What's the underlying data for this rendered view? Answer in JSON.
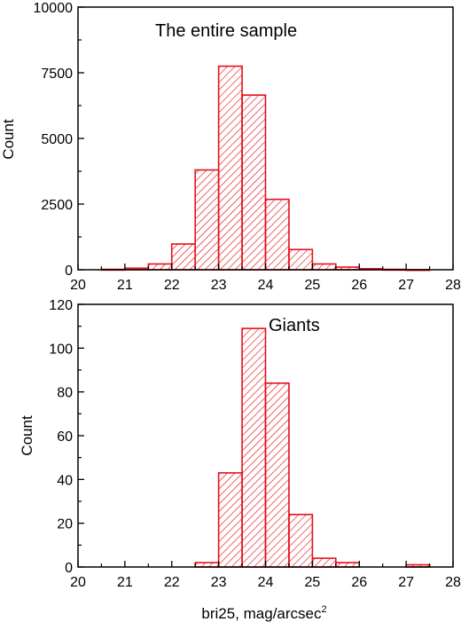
{
  "colors": {
    "bar": "#e8101b",
    "axis": "#000000",
    "background": "#ffffff"
  },
  "chart_data": [
    {
      "type": "bar",
      "bin_edges": [
        20,
        20.5,
        21,
        21.5,
        22,
        22.5,
        23,
        23.5,
        24,
        24.5,
        25,
        25.5,
        26,
        26.5,
        27,
        27.5,
        28
      ],
      "values": [
        0,
        15,
        60,
        220,
        980,
        3800,
        7750,
        6650,
        2680,
        770,
        220,
        100,
        40,
        15,
        5,
        0
      ],
      "annotation": "The entire sample",
      "xlabel": "",
      "ylabel": "Count",
      "xlim": [
        20,
        28
      ],
      "ylim": [
        0,
        10000
      ],
      "xticks": [
        "20",
        "21",
        "22",
        "23",
        "24",
        "25",
        "26",
        "27",
        "28"
      ],
      "yticks": [
        "0",
        "2500",
        "5000",
        "7500",
        "10000"
      ],
      "grid": false,
      "fill": "diagonal hatch"
    },
    {
      "type": "bar",
      "bin_edges": [
        20,
        20.5,
        21,
        21.5,
        22,
        22.5,
        23,
        23.5,
        24,
        24.5,
        25,
        25.5,
        26,
        26.5,
        27,
        27.5,
        28
      ],
      "values": [
        0,
        0,
        0,
        0,
        0,
        2,
        43,
        109,
        84,
        24,
        4,
        2,
        0,
        0,
        1,
        0
      ],
      "annotation": "Giants",
      "xlabel_base": "bri25, mag/arcsec",
      "xlabel_sup": "2",
      "ylabel": "Count",
      "xlim": [
        20,
        28
      ],
      "ylim": [
        0,
        120
      ],
      "xticks": [
        "20",
        "21",
        "22",
        "23",
        "24",
        "25",
        "26",
        "27",
        "28"
      ],
      "yticks": [
        "0",
        "20",
        "40",
        "60",
        "80",
        "100",
        "120"
      ],
      "grid": false,
      "fill": "diagonal hatch"
    }
  ]
}
